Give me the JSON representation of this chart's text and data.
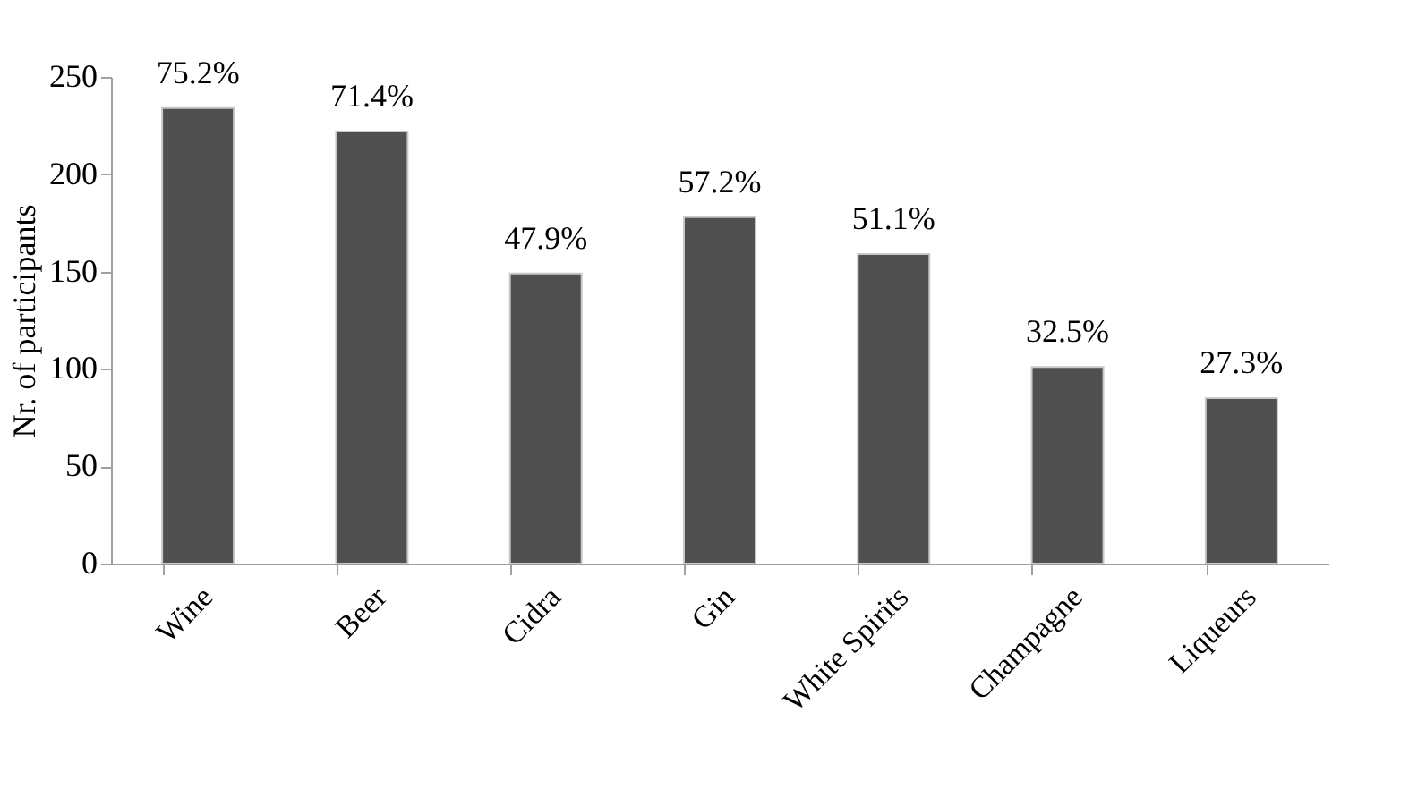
{
  "chart_data": {
    "type": "bar",
    "ylabel": "Nr. of participants",
    "categories": [
      "Wine",
      "Beer",
      "Cidra",
      "Gin",
      "White Spirits",
      "Champagne",
      "Liqueurs"
    ],
    "values": [
      234,
      222,
      149,
      178,
      159,
      101,
      85
    ],
    "annotations": [
      {
        "text": "75.2%",
        "x": "Wine",
        "y": 234
      },
      {
        "text": "71.4%",
        "x": "Beer",
        "y": 222
      },
      {
        "text": "47.9%",
        "x": "Cidra",
        "y": 149
      },
      {
        "text": "57.2%",
        "x": "Gin",
        "y": 178
      },
      {
        "text": "51.1%",
        "x": "White Spirits",
        "y": 159
      },
      {
        "text": "32.5%",
        "x": "Champagne",
        "y": 101
      },
      {
        "text": "27.3%",
        "x": "Liqueurs",
        "y": 85
      }
    ],
    "color": "#505050",
    "ylim": [
      0,
      250
    ],
    "yticks": [
      0,
      50,
      100,
      150,
      200,
      250
    ],
    "grid": false
  }
}
